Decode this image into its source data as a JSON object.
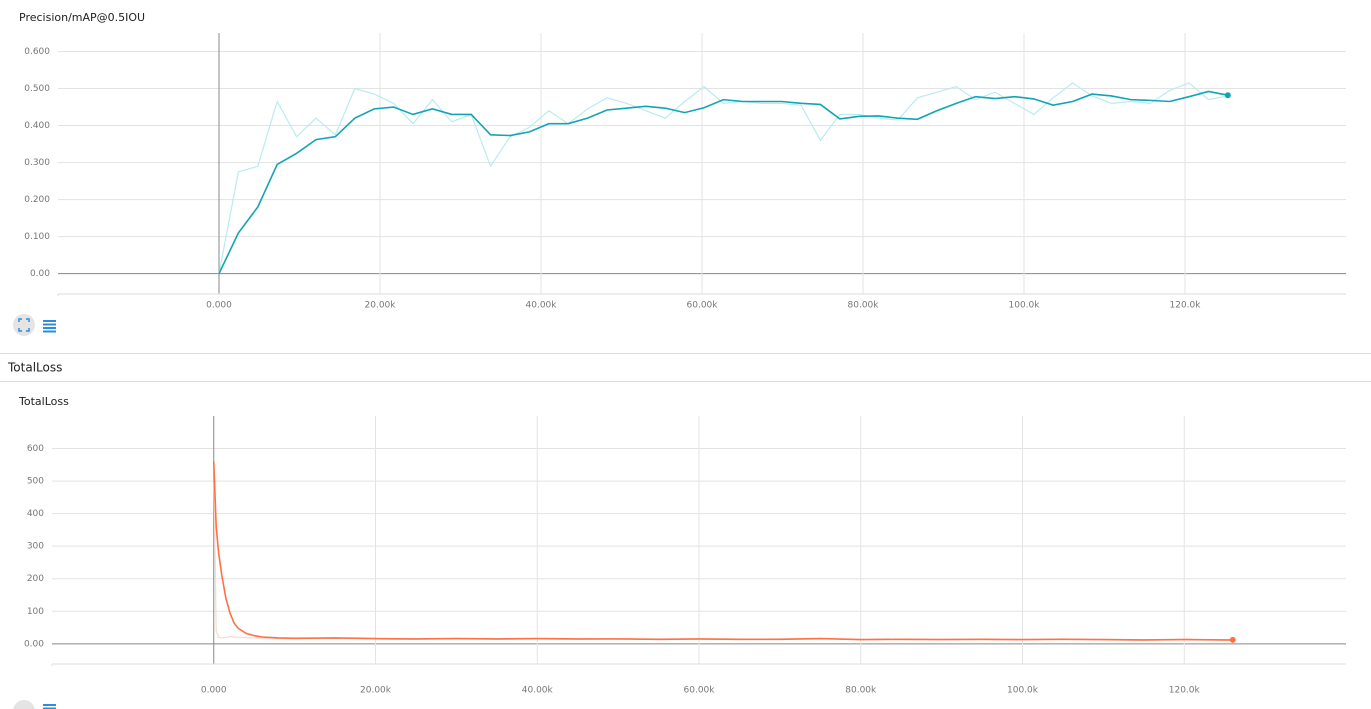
{
  "group_title": "TotalLoss",
  "chart_data": [
    {
      "type": "line",
      "title": "Precision/mAP@0.5IOU",
      "x": [
        0,
        2410,
        4820,
        7230,
        9640,
        12050,
        14460,
        16870,
        19280,
        21690,
        24100,
        26510,
        28920,
        31330,
        33740,
        36150,
        38560,
        40970,
        43380,
        45790,
        48200,
        50610,
        53020,
        55430,
        57840,
        60250,
        62660,
        65070,
        67480,
        69890,
        72300,
        74710,
        77120,
        79530,
        81940,
        84350,
        86760,
        89170,
        91580,
        93990,
        96400,
        98810,
        101220,
        103630,
        106040,
        108450,
        110860,
        113270,
        115680,
        118090,
        120500,
        122910,
        125320
      ],
      "series": [
        {
          "color": "#b9ebf0",
          "values": [
            0.0,
            0.275,
            0.29,
            0.465,
            0.37,
            0.42,
            0.375,
            0.5,
            0.485,
            0.46,
            0.405,
            0.47,
            0.41,
            0.43,
            0.29,
            0.37,
            0.395,
            0.44,
            0.405,
            0.445,
            0.475,
            0.46,
            0.44,
            0.42,
            0.465,
            0.505,
            0.46,
            0.465,
            0.46,
            0.46,
            0.455,
            0.36,
            0.43,
            0.43,
            0.42,
            0.415,
            0.475,
            0.49,
            0.505,
            0.47,
            0.49,
            0.46,
            0.43,
            0.475,
            0.515,
            0.48,
            0.46,
            0.465,
            0.46,
            0.495,
            0.515,
            0.47,
            0.48
          ]
        },
        {
          "color": "#12a4b6",
          "values": [
            0.0,
            0.11,
            0.18,
            0.295,
            0.325,
            0.362,
            0.37,
            0.42,
            0.445,
            0.45,
            0.43,
            0.445,
            0.43,
            0.43,
            0.375,
            0.373,
            0.383,
            0.405,
            0.405,
            0.42,
            0.442,
            0.447,
            0.452,
            0.447,
            0.435,
            0.448,
            0.47,
            0.465,
            0.465,
            0.465,
            0.46,
            0.457,
            0.418,
            0.425,
            0.426,
            0.42,
            0.417,
            0.44,
            0.46,
            0.478,
            0.473,
            0.478,
            0.472,
            0.455,
            0.465,
            0.485,
            0.48,
            0.47,
            0.468,
            0.465,
            0.478,
            0.492,
            0.482
          ]
        }
      ],
      "xlim": [
        -20000,
        140000
      ],
      "xticks": [
        {
          "value": 0,
          "label": "0.000"
        },
        {
          "value": 20000,
          "label": "20.00k"
        },
        {
          "value": 40000,
          "label": "40.00k"
        },
        {
          "value": 60000,
          "label": "60.00k"
        },
        {
          "value": 80000,
          "label": "80.00k"
        },
        {
          "value": 100000,
          "label": "100.0k"
        },
        {
          "value": 120000,
          "label": "120.0k"
        }
      ],
      "ylim": [
        -0.055,
        0.65
      ],
      "yticks": [
        {
          "value": 0,
          "label": "0.00"
        },
        {
          "value": 0.1,
          "label": "0.100"
        },
        {
          "value": 0.2,
          "label": "0.200"
        },
        {
          "value": 0.3,
          "label": "0.300"
        },
        {
          "value": 0.4,
          "label": "0.400"
        },
        {
          "value": 0.5,
          "label": "0.500"
        },
        {
          "value": 0.6,
          "label": "0.600"
        }
      ],
      "grid": true
    },
    {
      "type": "line",
      "title": "TotalLoss",
      "x": [
        0,
        300,
        600,
        1000,
        1500,
        2000,
        2500,
        3000,
        4000,
        5000,
        6000,
        8000,
        10000,
        15000,
        20000,
        25000,
        30000,
        35000,
        40000,
        45000,
        50000,
        55000,
        60000,
        65000,
        70000,
        75000,
        80000,
        85000,
        90000,
        95000,
        100000,
        105000,
        110000,
        115000,
        120000,
        125000,
        126000
      ],
      "series": [
        {
          "color": "#fcd9cc",
          "values": [
            560,
            40,
            20,
            18,
            20,
            22,
            21,
            20,
            19,
            18,
            17,
            16,
            16,
            18,
            15,
            14,
            17,
            14,
            15,
            14,
            16,
            13,
            14,
            13,
            15,
            17,
            12,
            13,
            14,
            13,
            12,
            15,
            12,
            11,
            14,
            11,
            11
          ]
        },
        {
          "color": "#ff7043",
          "values": [
            560,
            360,
            280,
            210,
            140,
            95,
            65,
            48,
            32,
            25,
            21,
            18,
            17,
            18,
            16,
            15,
            16,
            15,
            16,
            15,
            15,
            14,
            15,
            14,
            14,
            16,
            13,
            14,
            13,
            14,
            13,
            14,
            13,
            12,
            13,
            12,
            12
          ]
        }
      ],
      "xlim": [
        -20000,
        140000
      ],
      "xticks": [
        {
          "value": 0,
          "label": "0.000"
        },
        {
          "value": 20000,
          "label": "20.00k"
        },
        {
          "value": 40000,
          "label": "40.00k"
        },
        {
          "value": 60000,
          "label": "60.00k"
        },
        {
          "value": 80000,
          "label": "80.00k"
        },
        {
          "value": 100000,
          "label": "100.0k"
        },
        {
          "value": 120000,
          "label": "120.0k"
        }
      ],
      "ylim": [
        -62,
        700
      ],
      "yticks": [
        {
          "value": 0,
          "label": "0.00"
        },
        100,
        200,
        300,
        400,
        500,
        600
      ],
      "grid": true
    }
  ]
}
